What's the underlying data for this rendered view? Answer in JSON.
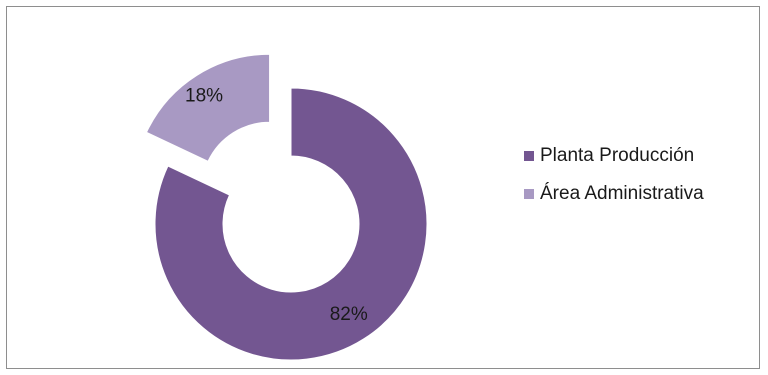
{
  "chart_data": {
    "type": "pie",
    "variant": "exploded-doughnut",
    "title": "",
    "slices": [
      {
        "name": "Planta Producción",
        "value": 82,
        "label": "82%",
        "color": "#735691"
      },
      {
        "name": "Área Administrativa",
        "value": 18,
        "label": "18%",
        "color": "#a899c3"
      }
    ],
    "legend": {
      "placement": "right",
      "items": [
        "Planta Producción",
        "Área Administrativa"
      ]
    }
  }
}
